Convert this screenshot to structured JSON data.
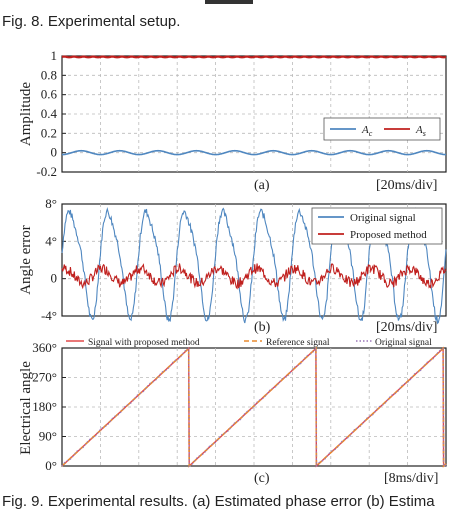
{
  "captions": {
    "top": "Fig. 8. Experimental setup.",
    "bottom": "Fig. 9. Experimental results. (a) Estimated phase error (b) Estima"
  },
  "colors": {
    "blue": "#4f87c0",
    "red": "#c0201e",
    "orange": "#e98a2e",
    "purple": "#9a76b8",
    "pink": "#e24a4a"
  },
  "chart_data": [
    {
      "type": "line",
      "panel": "(a)",
      "timescale": "[20ms/div]",
      "ylabel": "Amplitude",
      "ylim": [
        -0.2,
        1.0
      ],
      "yticks": [
        "1",
        "0.8",
        "0.6",
        "0.4",
        "0.2",
        "0",
        "-0.2"
      ],
      "xlim": [
        0,
        200
      ],
      "legend_position": "right",
      "series": [
        {
          "name": "A_c",
          "label_main": "A",
          "label_sub": "c",
          "mean": 0.0,
          "amplitude": 0.02,
          "cycles": 10
        },
        {
          "name": "A_s",
          "label_main": "A",
          "label_sub": "s",
          "mean": 0.99,
          "amplitude": 0.004,
          "cycles": 40
        }
      ]
    },
    {
      "type": "line",
      "panel": "(b)",
      "timescale": "[20ms/div]",
      "ylabel": "Angle error",
      "ylim": [
        -4,
        8
      ],
      "yticks": [
        "8°",
        "4°",
        "0",
        "-4°"
      ],
      "xlim": [
        0,
        200
      ],
      "legend_position": "top-right",
      "series": [
        {
          "name": "Original signal",
          "mean": 2.0,
          "amplitude": 5.5,
          "cycles": 10
        },
        {
          "name": "Proposed method",
          "mean": 0.3,
          "amplitude": 0.8,
          "cycles": 10
        }
      ]
    },
    {
      "type": "line",
      "panel": "(c)",
      "timescale": "[8ms/div]",
      "ylabel": "Electrical angle",
      "ylim": [
        0,
        360
      ],
      "yticks": [
        "360°",
        "270°",
        "180°",
        "90°",
        "0°"
      ],
      "xlim": [
        0,
        80
      ],
      "legend_position": "top",
      "sawtooth_resets": [
        0,
        26.5,
        53,
        79.5
      ],
      "series": [
        {
          "name": "Signal with proposed method"
        },
        {
          "name": "Reference signal"
        },
        {
          "name": "Original signal"
        }
      ]
    }
  ]
}
